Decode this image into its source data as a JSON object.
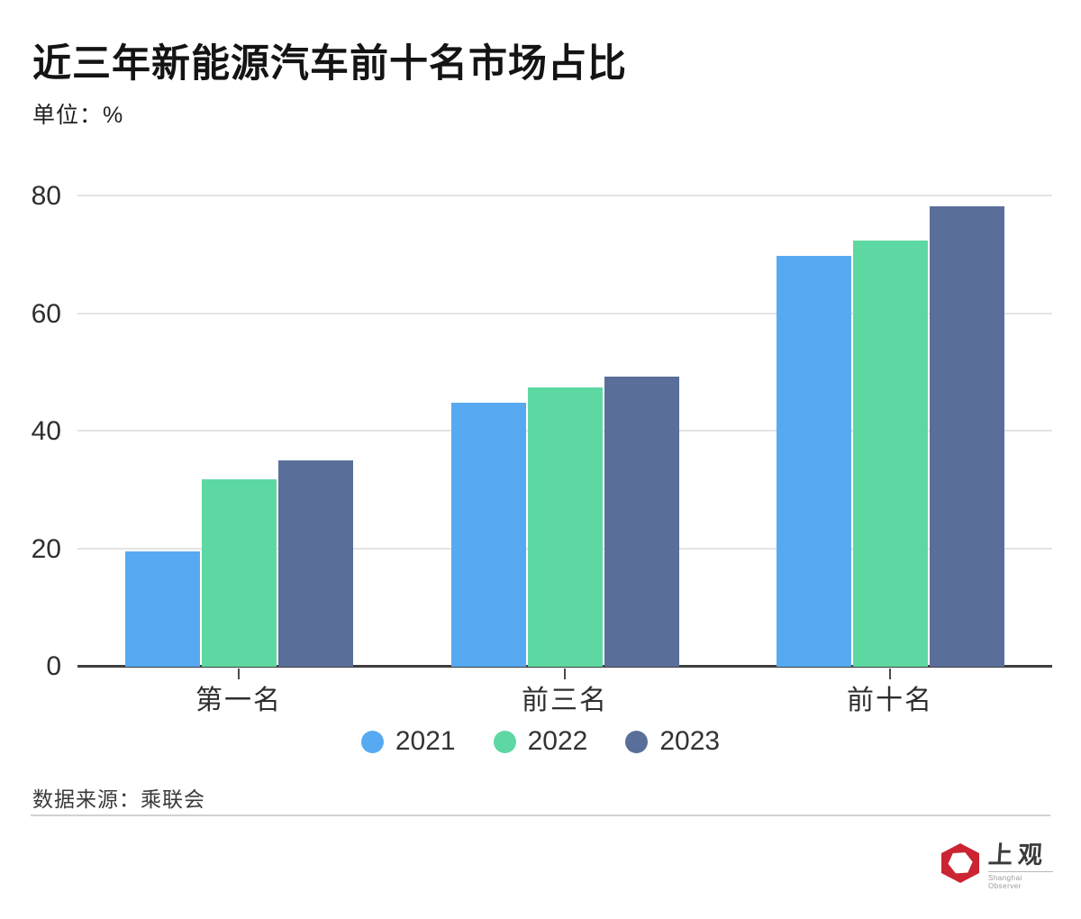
{
  "header": {
    "title": "近三年新能源汽车前十名市场占比",
    "unit_label": "单位：%"
  },
  "chart_data": {
    "type": "bar",
    "categories": [
      "第一名",
      "前三名",
      "前十名"
    ],
    "series": [
      {
        "name": "2021",
        "color": "#57aaf1",
        "values": [
          19.7,
          45.0,
          69.9
        ]
      },
      {
        "name": "2022",
        "color": "#5ed8a2",
        "values": [
          31.9,
          47.5,
          72.5
        ]
      },
      {
        "name": "2023",
        "color": "#5a6e9a",
        "values": [
          35.2,
          49.4,
          78.4
        ]
      }
    ],
    "title": "近三年新能源汽车前十名市场占比",
    "xlabel": "",
    "ylabel": "单位：%",
    "ylim": [
      0,
      80
    ],
    "yticks": [
      0,
      20,
      40,
      60,
      80
    ],
    "grid": true,
    "legend_position": "bottom"
  },
  "footer": {
    "source": "数据来源：乘联会"
  },
  "logo": {
    "name": "上观",
    "subname": "Shanghai Observer",
    "color": "#cb2433"
  },
  "style_colors": {
    "axis_line": "#3e3e3e",
    "gridline": "#e4e4e4",
    "text_dark": "#141414"
  }
}
